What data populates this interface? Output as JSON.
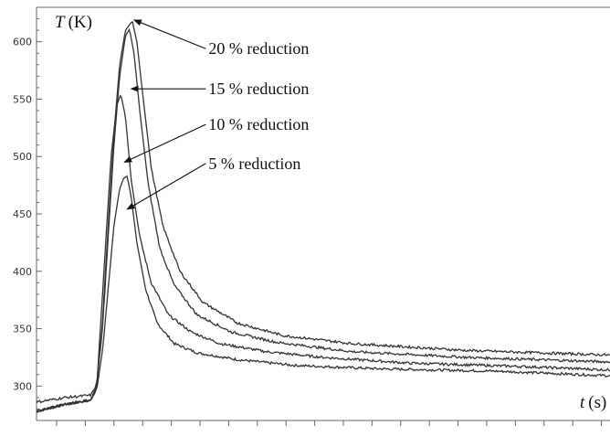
{
  "chart_data": {
    "type": "line",
    "title": "",
    "xlabel_var": "t",
    "xlabel_unit": "(s)",
    "ylabel_var": "T",
    "ylabel_unit": "(K)",
    "ylim": [
      270,
      630
    ],
    "xlim": [
      0,
      1
    ],
    "y_ticks": [
      300,
      350,
      400,
      450,
      500,
      550,
      600
    ],
    "y_minor_step": 10,
    "x_tick_count": 20,
    "grid": false,
    "series": [
      {
        "name": "5 % reduction",
        "peak_x": 0.157,
        "points": [
          [
            0,
            278
          ],
          [
            0.05,
            284
          ],
          [
            0.095,
            288
          ],
          [
            0.105,
            298
          ],
          [
            0.115,
            330
          ],
          [
            0.125,
            385
          ],
          [
            0.135,
            440
          ],
          [
            0.145,
            472
          ],
          [
            0.152,
            481
          ],
          [
            0.158,
            483
          ],
          [
            0.165,
            465
          ],
          [
            0.175,
            425
          ],
          [
            0.19,
            385
          ],
          [
            0.21,
            355
          ],
          [
            0.24,
            337
          ],
          [
            0.28,
            329
          ],
          [
            0.35,
            323
          ],
          [
            0.45,
            318
          ],
          [
            0.6,
            315
          ],
          [
            0.8,
            313
          ],
          [
            1.0,
            309
          ]
        ]
      },
      {
        "name": "10 % reduction",
        "peak_x": 0.147,
        "points": [
          [
            0,
            278
          ],
          [
            0.05,
            284
          ],
          [
            0.095,
            288
          ],
          [
            0.105,
            300
          ],
          [
            0.11,
            340
          ],
          [
            0.12,
            420
          ],
          [
            0.13,
            500
          ],
          [
            0.14,
            545
          ],
          [
            0.147,
            554
          ],
          [
            0.155,
            535
          ],
          [
            0.165,
            480
          ],
          [
            0.18,
            430
          ],
          [
            0.2,
            390
          ],
          [
            0.23,
            362
          ],
          [
            0.27,
            347
          ],
          [
            0.32,
            337
          ],
          [
            0.4,
            330
          ],
          [
            0.5,
            325
          ],
          [
            0.65,
            320
          ],
          [
            0.85,
            317
          ],
          [
            1.0,
            314
          ]
        ]
      },
      {
        "name": "15 % reduction",
        "peak_x": 0.162,
        "points": [
          [
            0,
            278
          ],
          [
            0.05,
            284
          ],
          [
            0.095,
            288
          ],
          [
            0.105,
            300
          ],
          [
            0.115,
            350
          ],
          [
            0.125,
            430
          ],
          [
            0.135,
            510
          ],
          [
            0.145,
            570
          ],
          [
            0.155,
            605
          ],
          [
            0.162,
            611
          ],
          [
            0.17,
            590
          ],
          [
            0.18,
            540
          ],
          [
            0.195,
            475
          ],
          [
            0.215,
            420
          ],
          [
            0.24,
            388
          ],
          [
            0.28,
            362
          ],
          [
            0.34,
            347
          ],
          [
            0.42,
            338
          ],
          [
            0.55,
            330
          ],
          [
            0.75,
            325
          ],
          [
            1.0,
            321
          ]
        ]
      },
      {
        "name": "20 % reduction",
        "peak_x": 0.167,
        "points": [
          [
            0,
            286
          ],
          [
            0.05,
            290
          ],
          [
            0.095,
            292
          ],
          [
            0.105,
            302
          ],
          [
            0.115,
            355
          ],
          [
            0.125,
            440
          ],
          [
            0.135,
            520
          ],
          [
            0.145,
            580
          ],
          [
            0.155,
            610
          ],
          [
            0.167,
            618
          ],
          [
            0.175,
            600
          ],
          [
            0.185,
            555
          ],
          [
            0.2,
            490
          ],
          [
            0.22,
            440
          ],
          [
            0.25,
            400
          ],
          [
            0.29,
            373
          ],
          [
            0.35,
            355
          ],
          [
            0.43,
            344
          ],
          [
            0.55,
            337
          ],
          [
            0.75,
            331
          ],
          [
            1.0,
            327
          ]
        ]
      }
    ],
    "annotations": [
      {
        "text": "20 % reduction",
        "label_x": 0.3,
        "label_y": 594,
        "arrow_to_x": 0.17,
        "arrow_to_y": 619
      },
      {
        "text": "15 % reduction",
        "label_x": 0.3,
        "label_y": 559,
        "arrow_to_x": 0.165,
        "arrow_to_y": 559
      },
      {
        "text": "10 % reduction",
        "label_x": 0.3,
        "label_y": 528,
        "arrow_to_x": 0.153,
        "arrow_to_y": 495
      },
      {
        "text": "5 % reduction",
        "label_x": 0.3,
        "label_y": 494,
        "arrow_to_x": 0.158,
        "arrow_to_y": 454
      }
    ]
  }
}
